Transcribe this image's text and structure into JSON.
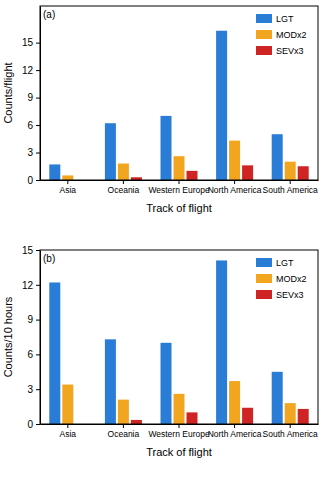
{
  "chart_data": [
    {
      "type": "bar",
      "title": "(a)",
      "x_label": "Track of flight",
      "y_label": "Counts/flight",
      "categories": [
        "Asia",
        "Oceania",
        "Western Europe",
        "North America",
        "South America"
      ],
      "series": [
        {
          "name": "LGT",
          "color": "#2a7dd6",
          "values": [
            1.7,
            6.2,
            7.0,
            16.3,
            5.0
          ]
        },
        {
          "name": "MODx2",
          "color": "#f2a51f",
          "values": [
            0.5,
            1.8,
            2.6,
            4.3,
            2.0
          ]
        },
        {
          "name": "SEVx3",
          "color": "#cf2424",
          "values": [
            0,
            0.3,
            1.0,
            1.6,
            1.5
          ]
        }
      ],
      "ylim": [
        0,
        19
      ],
      "yticks": [
        0,
        3,
        6,
        9,
        12,
        15
      ],
      "grid": false,
      "legend": "top-right"
    },
    {
      "type": "bar",
      "title": "(b)",
      "x_label": "Track of flight",
      "y_label": "Counts/10 hours",
      "categories": [
        "Asia",
        "Oceania",
        "Western Europe",
        "North America",
        "South America"
      ],
      "series": [
        {
          "name": "LGT",
          "color": "#2a7dd6",
          "values": [
            12.2,
            7.3,
            7.0,
            14.1,
            4.5
          ]
        },
        {
          "name": "MODx2",
          "color": "#f2a51f",
          "values": [
            3.4,
            2.1,
            2.6,
            3.7,
            1.8
          ]
        },
        {
          "name": "SEVx3",
          "color": "#cf2424",
          "values": [
            0,
            0.35,
            1.0,
            1.4,
            1.3
          ]
        }
      ],
      "ylim": [
        0,
        15
      ],
      "yticks": [
        0,
        3,
        6,
        9,
        12,
        15
      ],
      "grid": false,
      "legend": "top-right"
    }
  ]
}
